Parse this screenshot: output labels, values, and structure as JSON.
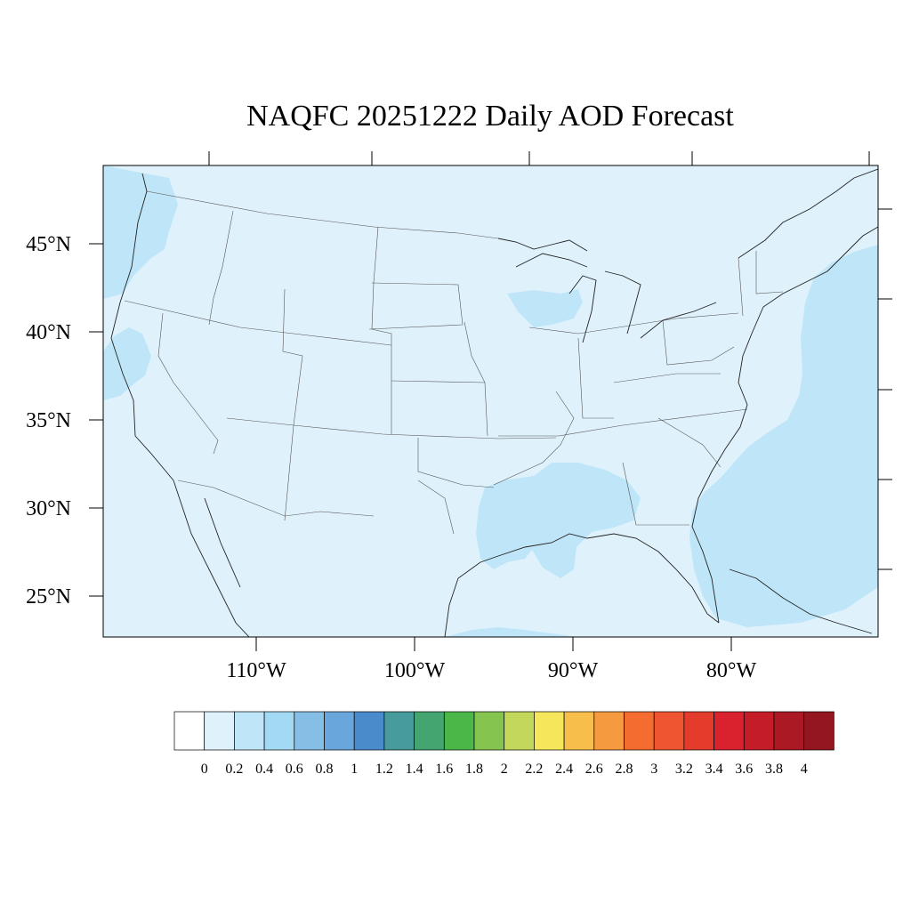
{
  "title": "NAQFC 20251222 Daily AOD Forecast",
  "map": {
    "lat_labels": [
      {
        "value": 45,
        "label": "45°N"
      },
      {
        "value": 40,
        "label": "40°N"
      },
      {
        "value": 35,
        "label": "35°N"
      },
      {
        "value": 30,
        "label": "30°N"
      },
      {
        "value": 25,
        "label": "25°N"
      }
    ],
    "lon_labels": [
      {
        "value": -110,
        "label": "110°W"
      },
      {
        "value": -100,
        "label": "100°W"
      },
      {
        "value": -90,
        "label": "90°W"
      },
      {
        "value": -80,
        "label": "80°W"
      }
    ]
  },
  "colorbar": {
    "labels": [
      "0",
      "0.2",
      "0.4",
      "0.6",
      "0.8",
      "1",
      "1.2",
      "1.4",
      "1.6",
      "1.8",
      "2",
      "2.2",
      "2.4",
      "2.6",
      "2.8",
      "3",
      "3.2",
      "3.4",
      "3.6",
      "3.8",
      "4"
    ],
    "colors": [
      "#ffffff",
      "#dff2fc",
      "#bfe6f8",
      "#a3d9f3",
      "#85bfe6",
      "#68a6db",
      "#4a8bcc",
      "#479b9d",
      "#45a571",
      "#4cb749",
      "#86c450",
      "#c3d75a",
      "#f5e65c",
      "#f7be4c",
      "#f69a40",
      "#f46c2f",
      "#ee5530",
      "#e33c2d",
      "#d9222d",
      "#c41d28",
      "#ab1a24",
      "#941620"
    ]
  },
  "colors": {
    "background_aod": "#dff2fc",
    "elevated_aod": "#bfe6f8",
    "boundary": "#333333"
  }
}
